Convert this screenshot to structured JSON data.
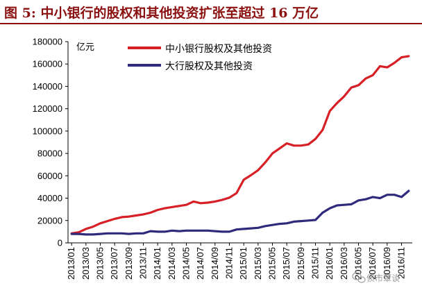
{
  "title": "图 5:  中小银行的股权和其他投资扩张至超过 16 万亿",
  "watermark": "债市覃谈",
  "colors": {
    "title": "#8b1010",
    "series1": "#d71f26",
    "series2": "#2f2a7c"
  },
  "chart_data": {
    "type": "line",
    "unit_label": "亿元",
    "ylim": [
      0,
      180000
    ],
    "yticks": [
      0,
      20000,
      40000,
      60000,
      80000,
      100000,
      120000,
      140000,
      160000,
      180000
    ],
    "xtick_labels": [
      "2013/01",
      "2013/03",
      "2013/05",
      "2013/07",
      "2013/09",
      "2013/11",
      "2014/01",
      "2014/03",
      "2014/05",
      "2014/07",
      "2014/09",
      "2014/11",
      "2015/01",
      "2015/03",
      "2015/05",
      "2015/07",
      "2015/09",
      "2015/11",
      "2016/01",
      "2016/03",
      "2016/05",
      "2016/07",
      "2016/09",
      "2016/11"
    ],
    "x": [
      "2013/01",
      "2013/02",
      "2013/03",
      "2013/04",
      "2013/05",
      "2013/06",
      "2013/07",
      "2013/08",
      "2013/09",
      "2013/10",
      "2013/11",
      "2013/12",
      "2014/01",
      "2014/02",
      "2014/03",
      "2014/04",
      "2014/05",
      "2014/06",
      "2014/07",
      "2014/08",
      "2014/09",
      "2014/10",
      "2014/11",
      "2014/12",
      "2015/01",
      "2015/02",
      "2015/03",
      "2015/04",
      "2015/05",
      "2015/06",
      "2015/07",
      "2015/08",
      "2015/09",
      "2015/10",
      "2015/11",
      "2015/12",
      "2016/01",
      "2016/02",
      "2016/03",
      "2016/04",
      "2016/05",
      "2016/06",
      "2016/07",
      "2016/08",
      "2016/09",
      "2016/10",
      "2016/11",
      "2016/12"
    ],
    "series": [
      {
        "name": "中小银行股权及其他投资",
        "values": [
          8500,
          9500,
          12500,
          14500,
          17500,
          19500,
          21500,
          23000,
          23500,
          24500,
          25500,
          27000,
          29500,
          31000,
          32000,
          33000,
          34000,
          37000,
          35500,
          36000,
          37000,
          38500,
          40500,
          44500,
          56500,
          60500,
          65000,
          72000,
          80000,
          84500,
          89000,
          87000,
          87000,
          88000,
          93000,
          101000,
          118000,
          125000,
          131000,
          139000,
          141000,
          147000,
          150000,
          158000,
          157000,
          161000,
          166000,
          167000
        ]
      },
      {
        "name": "大行股权及其他投资",
        "values": [
          8000,
          8000,
          7500,
          7500,
          8000,
          8500,
          8500,
          8500,
          8000,
          8500,
          8500,
          10500,
          10000,
          10000,
          11000,
          10500,
          11000,
          11000,
          11000,
          11000,
          10500,
          10000,
          10000,
          12000,
          12500,
          13000,
          13500,
          15000,
          16000,
          17000,
          17500,
          19000,
          19500,
          20000,
          20500,
          27000,
          31000,
          33500,
          34000,
          34500,
          38000,
          39000,
          41000,
          40000,
          43000,
          43000,
          41000,
          46500
        ]
      }
    ]
  }
}
